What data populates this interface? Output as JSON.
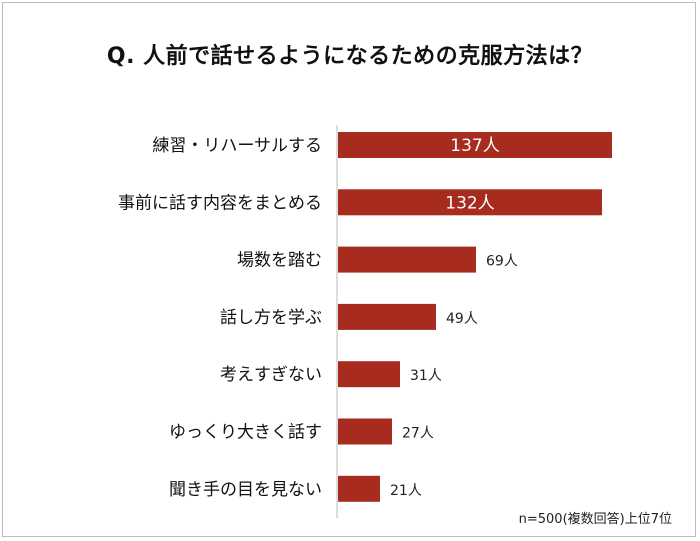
{
  "chart_data": {
    "type": "bar",
    "orientation": "horizontal",
    "title": "Q. 人前で話せるようになるための克服方法は？",
    "categories": [
      "練習・リハーサルする",
      "事前に話す内容をまとめる",
      "場数を踏む",
      "話し方を学ぶ",
      "考えすぎない",
      "ゆっくり大きく話す",
      "聞き手の目を見ない"
    ],
    "values": [
      137,
      132,
      69,
      49,
      31,
      27,
      21
    ],
    "value_labels": [
      "137人",
      "132人",
      "69人",
      "49人",
      "31人",
      "27人",
      "21人"
    ],
    "xlim": [
      0,
      150
    ],
    "grid": false,
    "bar_color": "#A82B1F",
    "note": "n=500(複数回答)上位7位"
  }
}
